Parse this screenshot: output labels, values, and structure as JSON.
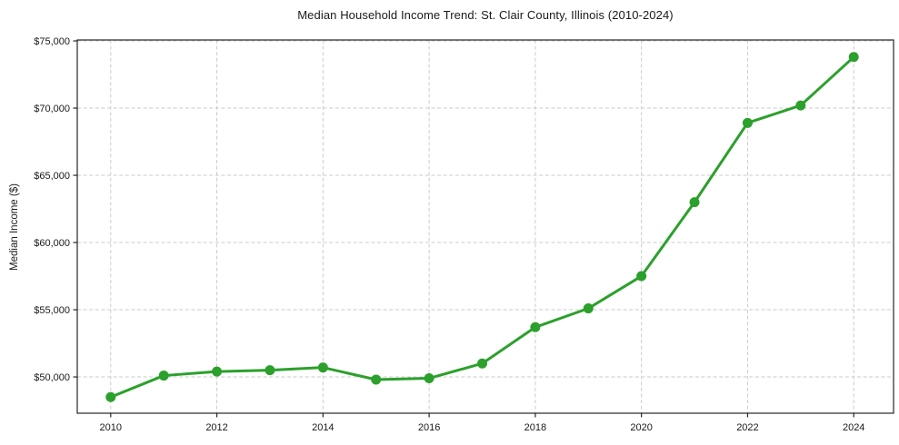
{
  "chart_data": {
    "type": "line",
    "title": "Median Household Income Trend: St. Clair County, Illinois (2010-2024)",
    "xlabel": "",
    "ylabel": "Median Income ($)",
    "x": [
      2010,
      2011,
      2012,
      2013,
      2014,
      2015,
      2016,
      2017,
      2018,
      2019,
      2020,
      2021,
      2022,
      2023,
      2024
    ],
    "values": [
      48500,
      50100,
      50400,
      50500,
      50700,
      49800,
      49900,
      51000,
      53700,
      55100,
      57500,
      63000,
      68900,
      70200,
      73800
    ],
    "x_ticks": [
      2010,
      2012,
      2014,
      2016,
      2018,
      2020,
      2022,
      2024
    ],
    "x_tick_labels": [
      "2010",
      "2012",
      "2014",
      "2016",
      "2018",
      "2020",
      "2022",
      "2024"
    ],
    "y_ticks": [
      50000,
      55000,
      60000,
      65000,
      70000,
      75000
    ],
    "y_tick_labels": [
      "$50,000",
      "$55,000",
      "$60,000",
      "$65,000",
      "$70,000",
      "$75,000"
    ],
    "xlim": [
      2009.37,
      2024.75
    ],
    "ylim": [
      47300,
      75070
    ],
    "grid": true,
    "grid_style": "dashed",
    "legend": "none",
    "line_color": "#2ca02c",
    "marker": "circle",
    "marker_color": "#2ca02c",
    "grid_color": "#cbcbcb",
    "axis_color": "#262626",
    "text_color": "#191919",
    "background_color": "#ffffff"
  }
}
